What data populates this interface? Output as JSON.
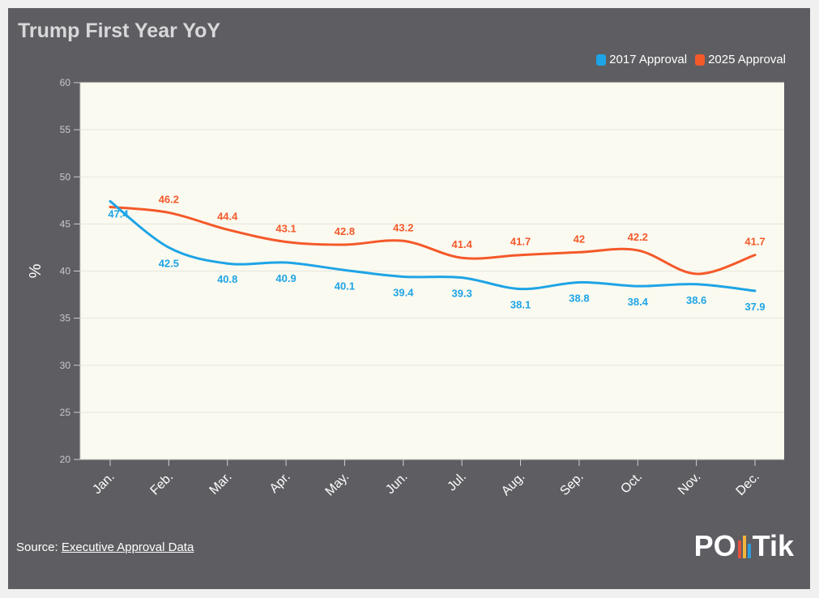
{
  "title": "Trump First Year YoY",
  "source": {
    "label": "Source:",
    "link_text": "Executive Approval Data"
  },
  "logo": {
    "text_left": "PO",
    "text_right": "Tik",
    "bar_colors": [
      "#e8523a",
      "#f4b43c",
      "#2d9fd9"
    ]
  },
  "chart_data": {
    "type": "line",
    "categories": [
      "Jan.",
      "Feb.",
      "Mar.",
      "Apr.",
      "May.",
      "Jun.",
      "Jul.",
      "Aug.",
      "Sep.",
      "Oct.",
      "Nov.",
      "Dec."
    ],
    "series": [
      {
        "name": "2017 Approval",
        "color": "#1ea4e6",
        "values": [
          47.4,
          42.5,
          40.8,
          40.9,
          40.1,
          39.4,
          39.3,
          38.1,
          38.8,
          38.4,
          38.6,
          37.9
        ]
      },
      {
        "name": "2025 Approval",
        "color": "#f4592a",
        "values": [
          46.8,
          46.2,
          44.4,
          43.1,
          42.8,
          43.2,
          41.4,
          41.7,
          42,
          42.2,
          39.7,
          41.7
        ],
        "labels": [
          "",
          "46.2",
          "44.4",
          "43.1",
          "42.8",
          "43.2",
          "41.4",
          "41.7",
          "42",
          "42.2",
          "",
          "41.7"
        ]
      }
    ],
    "ylabel": "%",
    "ylim": [
      20,
      60
    ],
    "yticks": [
      20,
      25,
      30,
      35,
      40,
      45,
      50,
      55,
      60
    ],
    "grid": true,
    "legend_position": "top-right"
  }
}
